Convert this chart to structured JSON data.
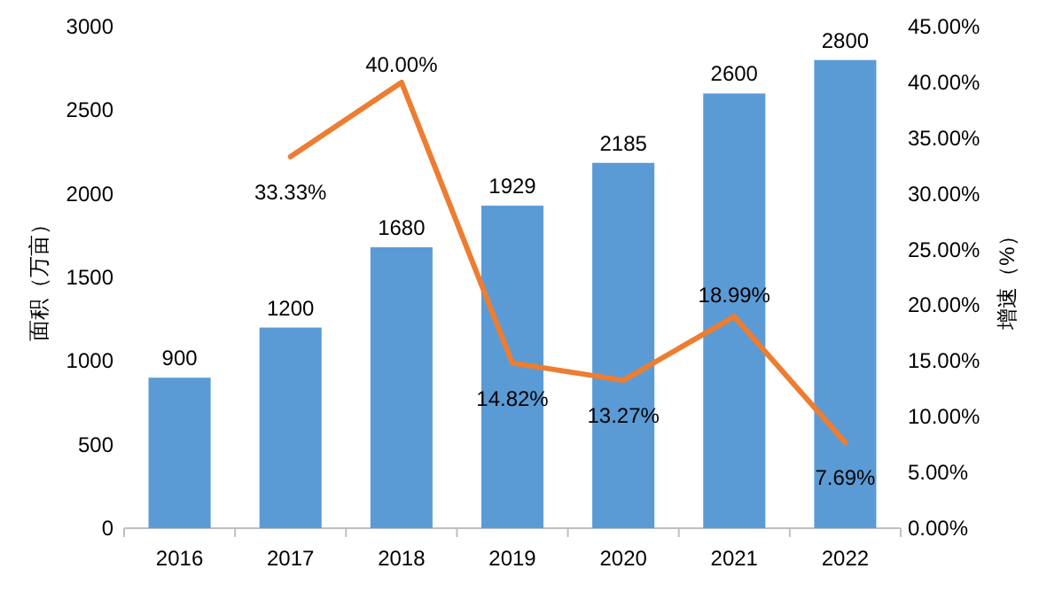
{
  "chart_data": {
    "type": "bar",
    "categories": [
      "2016",
      "2017",
      "2018",
      "2019",
      "2020",
      "2021",
      "2022"
    ],
    "ylabel": "面积（万亩）",
    "y2label": "增速（%）",
    "ylim": [
      0,
      3000
    ],
    "yticks": [
      0,
      500,
      1000,
      1500,
      2000,
      2500,
      3000
    ],
    "y2lim": [
      0,
      45
    ],
    "y2ticks": [
      {
        "value": 0,
        "label": "0.00%"
      },
      {
        "value": 5,
        "label": "5.00%"
      },
      {
        "value": 10,
        "label": "10.00%"
      },
      {
        "value": 15,
        "label": "15.00%"
      },
      {
        "value": 20,
        "label": "20.00%"
      },
      {
        "value": 25,
        "label": "25.00%"
      },
      {
        "value": 30,
        "label": "30.00%"
      },
      {
        "value": 35,
        "label": "35.00%"
      },
      {
        "value": 40,
        "label": "40.00%"
      },
      {
        "value": 45,
        "label": "45.00%"
      }
    ],
    "grid": false,
    "series": [
      {
        "color": "#5b9bd5",
        "values": [
          900,
          1200,
          1680,
          1929,
          2185,
          2600,
          2800
        ],
        "value_labels": [
          "900",
          "1200",
          "1680",
          "1929",
          "2185",
          "2600",
          "2800"
        ]
      },
      {
        "type": "line",
        "axis": "y2",
        "color": "#ed7d31",
        "marker": "none",
        "line_style": "solid",
        "values": [
          null,
          33.33,
          40.0,
          14.82,
          13.27,
          18.99,
          7.69
        ],
        "value_labels": [
          null,
          "33.33%",
          "40.00%",
          "14.82%",
          "13.27%",
          "18.99%",
          "7.69%"
        ]
      }
    ]
  }
}
